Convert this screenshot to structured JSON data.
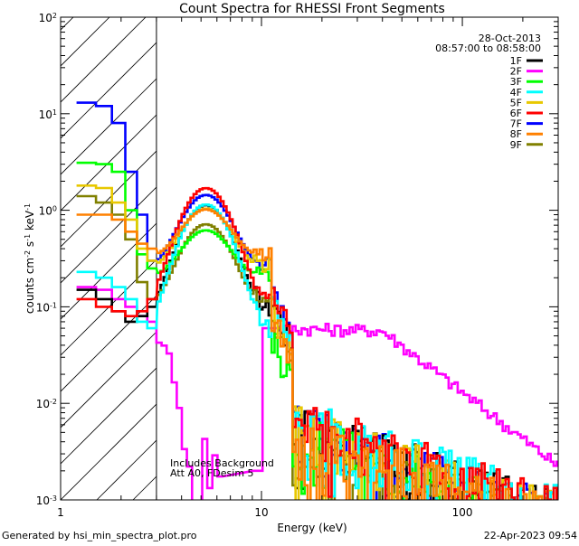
{
  "chart_data": {
    "type": "line",
    "title": "Count Spectra for RHESSI Front Segments",
    "xlabel": "Energy (keV)",
    "ylabel": "counts cm^-2 s^-1 keV^-1",
    "x_scale": "log",
    "y_scale": "log",
    "xlim": [
      1,
      300
    ],
    "ylim": [
      0.001,
      100
    ],
    "x_ticks": [
      {
        "value": 1,
        "label": "1"
      },
      {
        "value": 10,
        "label": "10"
      },
      {
        "value": 100,
        "label": "100"
      }
    ],
    "y_ticks": [
      {
        "value": 100,
        "base": "10",
        "exp": "2"
      },
      {
        "value": 10,
        "base": "10",
        "exp": "1"
      },
      {
        "value": 1,
        "base": "10",
        "exp": "0"
      },
      {
        "value": 0.1,
        "base": "10",
        "exp": "-1"
      },
      {
        "value": 0.01,
        "base": "10",
        "exp": "-2"
      },
      {
        "value": 0.001,
        "base": "10",
        "exp": "-3"
      }
    ],
    "hatched_region": [
      1,
      3
    ],
    "annotations": {
      "date": "28-Oct-2013",
      "time_range": "08:57:00 to 08:58:00",
      "background_note_1": "Includes Background",
      "background_note_2": "Att A0, FDesim 5"
    },
    "footer": {
      "left": "Generated by hsi_min_spectra_plot.pro",
      "right": "22-Apr-2023 09:54"
    },
    "legend_position": "top-right",
    "series": [
      {
        "name": "1F",
        "color": "#000000",
        "low": [
          0.15,
          0.12,
          0.09,
          0.07,
          0.08,
          0.1
        ],
        "peak": 1.05,
        "tail": 0.006
      },
      {
        "name": "2F",
        "color": "#ff00ff",
        "low": [
          0.16,
          0.15,
          0.12,
          0.1,
          0.08,
          0.07
        ]
      },
      {
        "name": "3F",
        "color": "#00ff00",
        "low": [
          3.1,
          3.0,
          2.5,
          1.0,
          0.35,
          0.25
        ],
        "peak": 0.42,
        "tail": 0.005
      },
      {
        "name": "4F",
        "color": "#00ffff",
        "low": [
          0.23,
          0.2,
          0.16,
          0.12,
          0.07,
          0.06
        ],
        "peak": 1.1,
        "tail": 0.007
      },
      {
        "name": "5F",
        "color": "#e8c800",
        "low": [
          1.8,
          1.7,
          1.2,
          0.8,
          0.4,
          0.3
        ],
        "peak": 0.8,
        "tail": 0.006
      },
      {
        "name": "6F",
        "color": "#ff0000",
        "low": [
          0.12,
          0.1,
          0.09,
          0.08,
          0.09,
          0.12
        ],
        "peak": 1.6,
        "tail": 0.007
      },
      {
        "name": "7F",
        "color": "#0000ff",
        "low": [
          13,
          12,
          8,
          2.5,
          0.9,
          0.3
        ],
        "peak": 1.2,
        "tail": 0.006
      },
      {
        "name": "8F",
        "color": "#ff8000",
        "low": [
          0.9,
          0.9,
          0.8,
          0.6,
          0.45,
          0.4
        ],
        "peak": 0.7,
        "tail": 0.005
      },
      {
        "name": "9F",
        "color": "#808000",
        "low": [
          1.4,
          1.2,
          0.9,
          0.5,
          0.18,
          0.12
        ],
        "peak": 0.62,
        "tail": 0.004
      }
    ]
  }
}
